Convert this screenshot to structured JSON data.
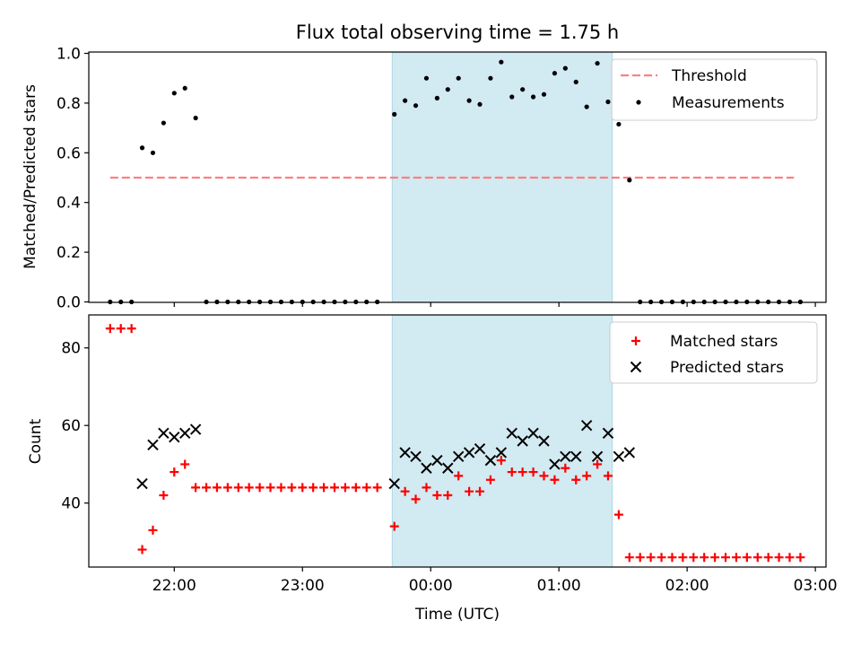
{
  "chart_data": [
    {
      "type": "scatter",
      "title": "Flux total observing time = 1.75 h",
      "xlabel": "",
      "ylabel": "Matched/Predicted stars",
      "ylim": [
        0.0,
        1.0
      ],
      "yticks": [
        0.0,
        0.2,
        0.4,
        0.6,
        0.8,
        1.0
      ],
      "ytick_labels": [
        "0.0",
        "0.2",
        "0.4",
        "0.6",
        "0.8",
        "1.0"
      ],
      "xlim": [
        "21:20",
        "03:05"
      ],
      "shaded_span": [
        "23:42",
        "01:25"
      ],
      "shade_color": "#add8e6",
      "legend_position": "top-right",
      "threshold": {
        "name": "Threshold",
        "y": 0.5,
        "x_start": "21:30",
        "x_end": "02:50",
        "color": "#ff7f7f",
        "style": "dashed"
      },
      "series": [
        {
          "name": "Measurements",
          "color": "#000000",
          "marker": "dot",
          "points": [
            [
              "21:30",
              0.0
            ],
            [
              "21:35",
              0.0
            ],
            [
              "21:40",
              0.0
            ],
            [
              "21:45",
              0.62
            ],
            [
              "21:50",
              0.6
            ],
            [
              "21:55",
              0.72
            ],
            [
              "22:00",
              0.84
            ],
            [
              "22:05",
              0.86
            ],
            [
              "22:10",
              0.74
            ],
            [
              "22:15",
              0.0
            ],
            [
              "22:20",
              0.0
            ],
            [
              "22:25",
              0.0
            ],
            [
              "22:30",
              0.0
            ],
            [
              "22:35",
              0.0
            ],
            [
              "22:40",
              0.0
            ],
            [
              "22:45",
              0.0
            ],
            [
              "22:50",
              0.0
            ],
            [
              "22:55",
              0.0
            ],
            [
              "23:00",
              0.0
            ],
            [
              "23:05",
              0.0
            ],
            [
              "23:10",
              0.0
            ],
            [
              "23:15",
              0.0
            ],
            [
              "23:20",
              0.0
            ],
            [
              "23:25",
              0.0
            ],
            [
              "23:30",
              0.0
            ],
            [
              "23:35",
              0.0
            ],
            [
              "23:43",
              0.755
            ],
            [
              "23:48",
              0.81
            ],
            [
              "23:53",
              0.79
            ],
            [
              "23:58",
              0.9
            ],
            [
              "00:03",
              0.82
            ],
            [
              "00:08",
              0.855
            ],
            [
              "00:13",
              0.9
            ],
            [
              "00:18",
              0.81
            ],
            [
              "00:23",
              0.795
            ],
            [
              "00:28",
              0.9
            ],
            [
              "00:33",
              0.965
            ],
            [
              "00:38",
              0.825
            ],
            [
              "00:43",
              0.855
            ],
            [
              "00:48",
              0.825
            ],
            [
              "00:53",
              0.835
            ],
            [
              "00:58",
              0.92
            ],
            [
              "01:03",
              0.94
            ],
            [
              "01:08",
              0.885
            ],
            [
              "01:13",
              0.785
            ],
            [
              "01:18",
              0.96
            ],
            [
              "01:23",
              0.805
            ],
            [
              "01:28",
              0.715
            ],
            [
              "01:33",
              0.49
            ],
            [
              "01:38",
              0.0
            ],
            [
              "01:43",
              0.0
            ],
            [
              "01:48",
              0.0
            ],
            [
              "01:53",
              0.0
            ],
            [
              "01:58",
              0.0
            ],
            [
              "02:03",
              0.0
            ],
            [
              "02:08",
              0.0
            ],
            [
              "02:13",
              0.0
            ],
            [
              "02:18",
              0.0
            ],
            [
              "02:23",
              0.0
            ],
            [
              "02:28",
              0.0
            ],
            [
              "02:33",
              0.0
            ],
            [
              "02:38",
              0.0
            ],
            [
              "02:43",
              0.0
            ],
            [
              "02:48",
              0.0
            ],
            [
              "02:53",
              0.0
            ]
          ]
        }
      ]
    },
    {
      "type": "scatter",
      "title": "",
      "xlabel": "Time (UTC)",
      "ylabel": "Count",
      "ylim": [
        23.5,
        88.5
      ],
      "yticks": [
        40,
        60,
        80
      ],
      "ytick_labels": [
        "40",
        "60",
        "80"
      ],
      "xlim": [
        "21:20",
        "03:05"
      ],
      "xticks": [
        "22:00",
        "23:00",
        "00:00",
        "01:00",
        "02:00",
        "03:00"
      ],
      "xtick_labels": [
        "22:00",
        "23:00",
        "00:00",
        "01:00",
        "02:00",
        "03:00"
      ],
      "shaded_span": [
        "23:42",
        "01:25"
      ],
      "shade_color": "#add8e6",
      "legend_position": "top-right",
      "series": [
        {
          "name": "Matched stars",
          "color": "#ff0000",
          "marker": "plus",
          "points": [
            [
              "21:30",
              85
            ],
            [
              "21:35",
              85
            ],
            [
              "21:40",
              85
            ],
            [
              "21:45",
              28
            ],
            [
              "21:50",
              33
            ],
            [
              "21:55",
              42
            ],
            [
              "22:00",
              48
            ],
            [
              "22:05",
              50
            ],
            [
              "22:10",
              44
            ],
            [
              "22:15",
              44
            ],
            [
              "22:20",
              44
            ],
            [
              "22:25",
              44
            ],
            [
              "22:30",
              44
            ],
            [
              "22:35",
              44
            ],
            [
              "22:40",
              44
            ],
            [
              "22:45",
              44
            ],
            [
              "22:50",
              44
            ],
            [
              "22:55",
              44
            ],
            [
              "23:00",
              44
            ],
            [
              "23:05",
              44
            ],
            [
              "23:10",
              44
            ],
            [
              "23:15",
              44
            ],
            [
              "23:20",
              44
            ],
            [
              "23:25",
              44
            ],
            [
              "23:30",
              44
            ],
            [
              "23:35",
              44
            ],
            [
              "23:43",
              34
            ],
            [
              "23:48",
              43
            ],
            [
              "23:53",
              41
            ],
            [
              "23:58",
              44
            ],
            [
              "00:03",
              42
            ],
            [
              "00:08",
              42
            ],
            [
              "00:13",
              47
            ],
            [
              "00:18",
              43
            ],
            [
              "00:23",
              43
            ],
            [
              "00:28",
              46
            ],
            [
              "00:33",
              51
            ],
            [
              "00:38",
              48
            ],
            [
              "00:43",
              48
            ],
            [
              "00:48",
              48
            ],
            [
              "00:53",
              47
            ],
            [
              "00:58",
              46
            ],
            [
              "01:03",
              49
            ],
            [
              "01:08",
              46
            ],
            [
              "01:13",
              47
            ],
            [
              "01:18",
              50
            ],
            [
              "01:23",
              47
            ],
            [
              "01:28",
              37
            ],
            [
              "01:33",
              26
            ],
            [
              "01:38",
              26
            ],
            [
              "01:43",
              26
            ],
            [
              "01:48",
              26
            ],
            [
              "01:53",
              26
            ],
            [
              "01:58",
              26
            ],
            [
              "02:03",
              26
            ],
            [
              "02:08",
              26
            ],
            [
              "02:13",
              26
            ],
            [
              "02:18",
              26
            ],
            [
              "02:23",
              26
            ],
            [
              "02:28",
              26
            ],
            [
              "02:33",
              26
            ],
            [
              "02:38",
              26
            ],
            [
              "02:43",
              26
            ],
            [
              "02:48",
              26
            ],
            [
              "02:53",
              26
            ]
          ]
        },
        {
          "name": "Predicted stars",
          "color": "#000000",
          "marker": "x",
          "points": [
            [
              "21:45",
              45
            ],
            [
              "21:50",
              55
            ],
            [
              "21:55",
              58
            ],
            [
              "22:00",
              57
            ],
            [
              "22:05",
              58
            ],
            [
              "22:10",
              59
            ],
            [
              "23:43",
              45
            ],
            [
              "23:48",
              53
            ],
            [
              "23:53",
              52
            ],
            [
              "23:58",
              49
            ],
            [
              "00:03",
              51
            ],
            [
              "00:08",
              49
            ],
            [
              "00:13",
              52
            ],
            [
              "00:18",
              53
            ],
            [
              "00:23",
              54
            ],
            [
              "00:28",
              51
            ],
            [
              "00:33",
              53
            ],
            [
              "00:38",
              58
            ],
            [
              "00:43",
              56
            ],
            [
              "00:48",
              58
            ],
            [
              "00:53",
              56
            ],
            [
              "00:58",
              50
            ],
            [
              "01:03",
              52
            ],
            [
              "01:08",
              52
            ],
            [
              "01:13",
              60
            ],
            [
              "01:18",
              52
            ],
            [
              "01:23",
              58
            ],
            [
              "01:28",
              52
            ],
            [
              "01:33",
              53
            ]
          ]
        }
      ]
    }
  ]
}
